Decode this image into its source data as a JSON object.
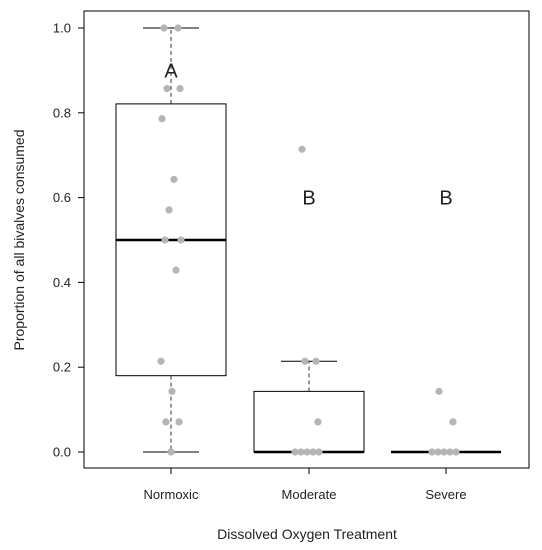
{
  "chart_data": {
    "type": "boxplot",
    "title": "",
    "xlabel": "Dissolved Oxygen Treatment",
    "ylabel": "Proportion of all bivalves consumed",
    "ylim": [
      0,
      1
    ],
    "yticks": [
      "0.0",
      "0.2",
      "0.4",
      "0.6",
      "0.8",
      "1.0"
    ],
    "categories": [
      "Normoxic",
      "Moderate",
      "Severe"
    ],
    "boxes": [
      {
        "category": "Normoxic",
        "whisker_low": 0.0,
        "q1": 0.18,
        "median": 0.5,
        "q3": 0.821,
        "whisker_high": 1.0
      },
      {
        "category": "Moderate",
        "whisker_low": 0.0,
        "q1": 0.0,
        "median": 0.0,
        "q3": 0.143,
        "whisker_high": 0.214
      },
      {
        "category": "Severe",
        "whisker_low": 0.0,
        "q1": 0.0,
        "median": 0.0,
        "q3": 0.0,
        "whisker_high": 0.0
      }
    ],
    "points": [
      {
        "category": "Normoxic",
        "values": [
          1.0,
          1.0,
          0.857,
          0.857,
          0.786,
          0.643,
          0.571,
          0.5,
          0.5,
          0.429,
          0.214,
          0.143,
          0.071,
          0.071,
          0.0
        ]
      },
      {
        "category": "Moderate",
        "values": [
          0.714,
          0.214,
          0.214,
          0.071,
          0.0,
          0.0,
          0.0,
          0.0,
          0.0
        ]
      },
      {
        "category": "Severe",
        "values": [
          0.143,
          0.071,
          0.0,
          0.0,
          0.0,
          0.0,
          0.0
        ]
      }
    ],
    "group_letters": [
      {
        "category": "Normoxic",
        "letter": "A",
        "y": 0.9
      },
      {
        "category": "Moderate",
        "letter": "B",
        "y": 0.6
      },
      {
        "category": "Severe",
        "letter": "B",
        "y": 0.6
      }
    ],
    "colors": {
      "box": "#000000",
      "points": "#b5b5b5",
      "whisker": "#555555"
    }
  }
}
